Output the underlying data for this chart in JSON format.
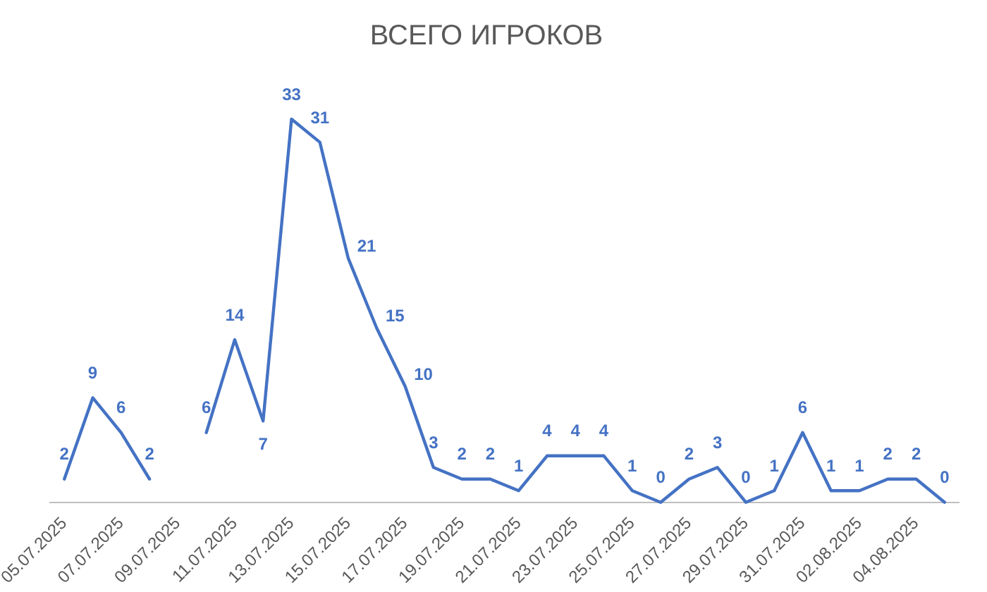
{
  "chart_data": {
    "type": "line",
    "title": "ВСЕГО ИГРОКОВ",
    "categories": [
      "05.07.2025",
      null,
      "07.07.2025",
      null,
      "09.07.2025",
      null,
      "11.07.2025",
      null,
      "13.07.2025",
      null,
      "15.07.2025",
      null,
      "17.07.2025",
      null,
      "19.07.2025",
      null,
      "21.07.2025",
      null,
      "23.07.2025",
      null,
      "25.07.2025",
      null,
      "27.07.2025",
      null,
      "29.07.2025",
      null,
      "31.07.2025",
      null,
      "02.08.2025",
      null,
      "04.08.2025",
      null
    ],
    "series": [
      {
        "color": "#4472c4",
        "values": [
          2,
          9,
          6,
          2,
          null,
          6,
          14,
          7,
          33,
          31,
          21,
          15,
          10,
          3,
          2,
          2,
          1,
          4,
          4,
          4,
          1,
          0,
          2,
          3,
          0,
          1,
          6,
          1,
          1,
          2,
          2,
          0
        ]
      }
    ],
    "data_labels": true,
    "grid": false,
    "legend": false,
    "marker": "none",
    "line_style": "solid"
  }
}
